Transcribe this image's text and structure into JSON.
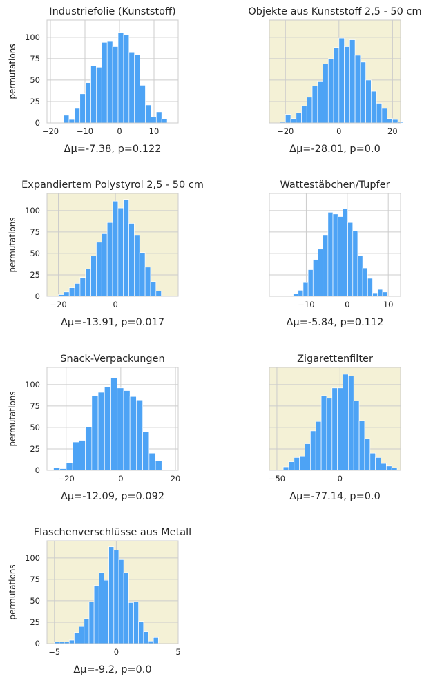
{
  "figure": {
    "ylabel": "permutations",
    "colors": {
      "bar": "#4da3f5",
      "bar_edge": "#ffffff",
      "plain_bg": "#ffffff",
      "highlight_bg": "#f4f1d6",
      "grid": "#cccccc",
      "frame": "#cccccc",
      "text": "#262626"
    }
  },
  "chart_data": [
    {
      "type": "bar",
      "title": "Industriefolie (Kunststoff)",
      "xlabel": "Δμ=-7.38, p=0.122",
      "ylabel": "permutations",
      "highlighted": false,
      "xlim": [
        -21,
        17
      ],
      "ylim": [
        0,
        120
      ],
      "xticks": [
        -20,
        -10,
        0,
        10
      ],
      "yticks": [
        0,
        25,
        50,
        75,
        100
      ],
      "bin_start": -16.2,
      "bin_width": 1.58,
      "values": [
        9,
        4,
        17,
        34,
        47,
        67,
        65,
        94,
        95,
        89,
        105,
        103,
        82,
        80,
        44,
        21,
        7,
        13,
        5
      ]
    },
    {
      "type": "bar",
      "title": "Objekte aus Kunststoff 2,5 - 50 cm",
      "xlabel": "Δμ=-28.01, p=0.0",
      "ylabel": "permutations",
      "highlighted": true,
      "xlim": [
        -26,
        23
      ],
      "ylim": [
        0,
        120
      ],
      "xticks": [
        -20,
        0,
        20
      ],
      "yticks": [
        0,
        25,
        50,
        75,
        100
      ],
      "bin_start": -22.0,
      "bin_width": 2.0,
      "values": [
        1,
        10,
        5,
        12,
        20,
        30,
        43,
        48,
        69,
        75,
        88,
        99,
        89,
        97,
        79,
        71,
        50,
        37,
        23,
        17,
        5,
        4,
        1
      ]
    },
    {
      "type": "bar",
      "title": "Expandiertem Polystyrol 2,5 - 50 cm",
      "xlabel": "Δμ=-13.91, p=0.017",
      "ylabel": "permutations",
      "highlighted": true,
      "xlim": [
        -24,
        22
      ],
      "ylim": [
        0,
        120
      ],
      "xticks": [
        -20,
        0
      ],
      "yticks": [
        0,
        25,
        50,
        75,
        100
      ],
      "bin_start": -20.0,
      "bin_width": 1.9,
      "values": [
        2,
        5,
        10,
        15,
        22,
        32,
        47,
        63,
        73,
        86,
        111,
        103,
        113,
        85,
        71,
        51,
        34,
        17,
        6
      ]
    },
    {
      "type": "bar",
      "title": "Wattestäbchen/Tupfer",
      "xlabel": "Δμ=-5.84, p=0.112",
      "ylabel": "",
      "highlighted": false,
      "xlim": [
        -19,
        13
      ],
      "ylim": [
        0,
        120
      ],
      "xticks": [
        -10,
        0,
        10
      ],
      "yticks": [
        0,
        25,
        50,
        75,
        100
      ],
      "bin_start": -15.6,
      "bin_width": 1.21,
      "values": [
        1,
        1,
        3,
        7,
        16,
        31,
        43,
        55,
        71,
        98,
        96,
        93,
        102,
        86,
        76,
        47,
        33,
        21,
        4,
        8,
        5
      ]
    },
    {
      "type": "bar",
      "title": "Snack-Verpackungen",
      "xlabel": "Δμ=-12.09, p=0.092",
      "ylabel": "permutations",
      "highlighted": false,
      "xlim": [
        -27,
        21
      ],
      "ylim": [
        0,
        120
      ],
      "xticks": [
        -20,
        0,
        20
      ],
      "yticks": [
        0,
        25,
        50,
        75,
        100
      ],
      "bin_start": -24.6,
      "bin_width": 2.33,
      "values": [
        3,
        2,
        9,
        33,
        35,
        51,
        87,
        91,
        97,
        108,
        96,
        93,
        86,
        82,
        45,
        20,
        11
      ]
    },
    {
      "type": "bar",
      "title": "Zigarettenfilter",
      "xlabel": "Δμ=-77.14, p=0.0",
      "ylabel": "",
      "highlighted": true,
      "xlim": [
        -56,
        48
      ],
      "ylim": [
        0,
        120
      ],
      "xticks": [
        -50,
        0
      ],
      "yticks": [
        0,
        25,
        50,
        75,
        100
      ],
      "bin_start": -45.0,
      "bin_width": 4.3,
      "values": [
        4,
        10,
        15,
        16,
        31,
        46,
        57,
        87,
        84,
        96,
        96,
        112,
        110,
        81,
        58,
        37,
        20,
        15,
        8,
        5,
        3
      ]
    },
    {
      "type": "bar",
      "title": "Flaschenverschlüsse aus Metall",
      "xlabel": "Δμ=-9.2, p=0.0",
      "ylabel": "permutations",
      "highlighted": true,
      "xlim": [
        -5.6,
        5.0
      ],
      "ylim": [
        0,
        120
      ],
      "xticks": [
        -5,
        0,
        5
      ],
      "yticks": [
        0,
        25,
        50,
        75,
        100
      ],
      "bin_start": -5.0,
      "bin_width": 0.4,
      "values": [
        2,
        2,
        2,
        4,
        13,
        20,
        29,
        49,
        68,
        83,
        74,
        113,
        109,
        98,
        83,
        48,
        49,
        26,
        14,
        3,
        7
      ]
    }
  ]
}
